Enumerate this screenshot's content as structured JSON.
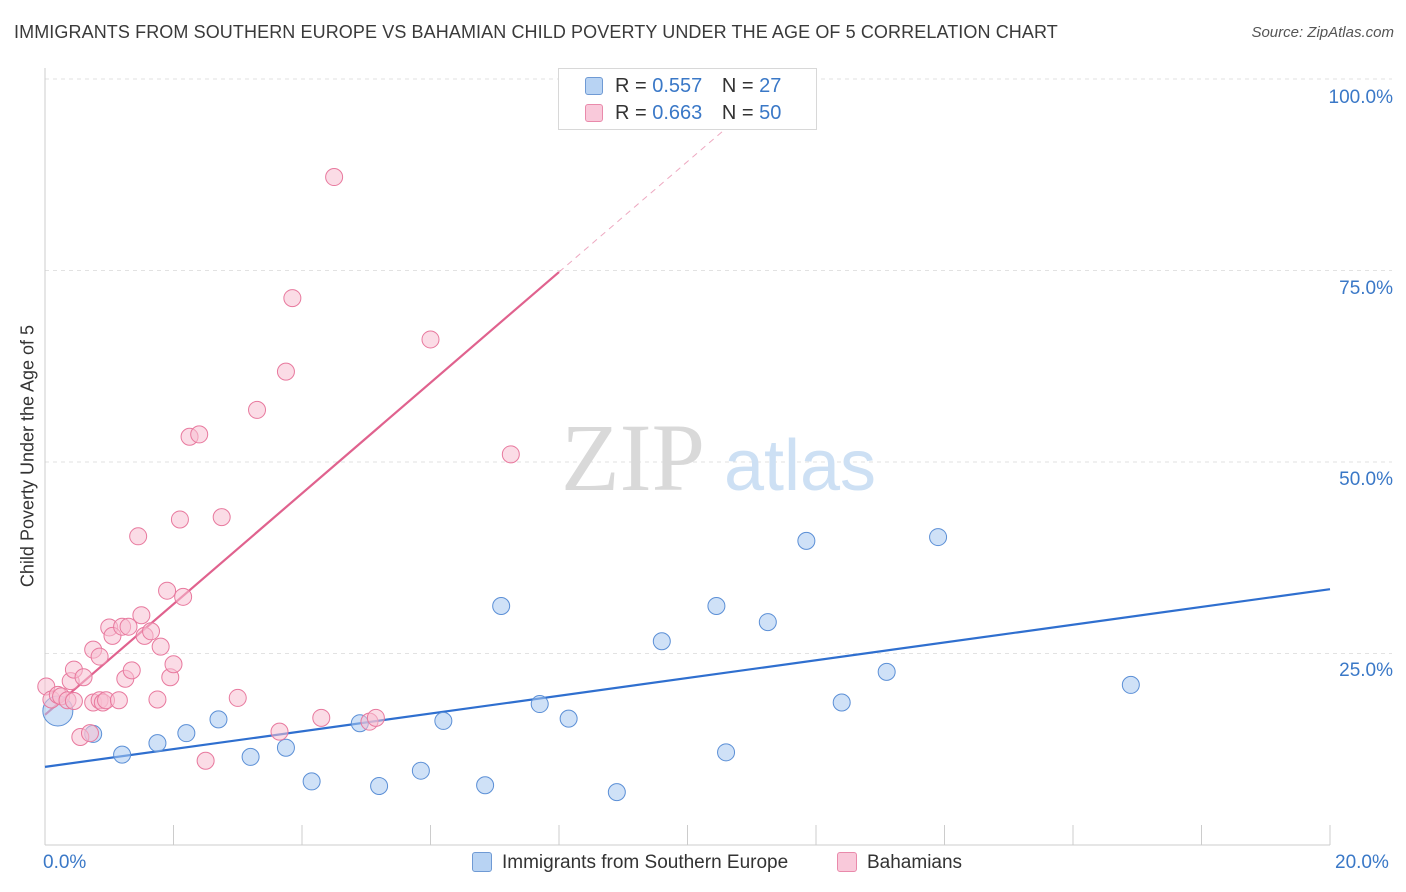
{
  "title": "IMMIGRANTS FROM SOUTHERN EUROPE VS BAHAMIAN CHILD POVERTY UNDER THE AGE OF 5 CORRELATION CHART",
  "source": "Source: ZipAtlas.com",
  "watermark": {
    "zip": "ZIP",
    "atlas": "atlas"
  },
  "legend": {
    "r_label": "R =",
    "n_label": "N =",
    "series": [
      {
        "r": "0.557",
        "n": "27"
      },
      {
        "r": "0.663",
        "n": "50"
      }
    ]
  },
  "chart_data": {
    "type": "scatter",
    "title": "IMMIGRANTS FROM SOUTHERN EUROPE VS BAHAMIAN CHILD POVERTY UNDER THE AGE OF 5 CORRELATION CHART",
    "ylabel": "Child Poverty Under the Age of 5",
    "xlabel": "",
    "xlim": [
      0,
      20
    ],
    "ylim": [
      0,
      100
    ],
    "x_tick_labels": [
      "0.0%",
      "20.0%"
    ],
    "y_tick_labels": [
      "100.0%",
      "75.0%",
      "50.0%",
      "25.0%"
    ],
    "y_tick_values": [
      100,
      75,
      50,
      25
    ],
    "grid": true,
    "legend_position": "top-center",
    "series": [
      {
        "name": "Immigrants from Southern Europe",
        "color": "#a8c8f0",
        "stroke": "#5b8fd6",
        "line_color": "#2f6fcf",
        "trend": {
          "x": [
            0,
            20
          ],
          "y": [
            10.2,
            33.4
          ]
        },
        "points": [
          {
            "x": 0.2,
            "y": 17.5,
            "big": true
          },
          {
            "x": 0.75,
            "y": 14.5
          },
          {
            "x": 1.2,
            "y": 11.8
          },
          {
            "x": 1.75,
            "y": 13.3
          },
          {
            "x": 2.2,
            "y": 14.6
          },
          {
            "x": 2.7,
            "y": 16.4
          },
          {
            "x": 3.2,
            "y": 11.5
          },
          {
            "x": 3.75,
            "y": 12.7
          },
          {
            "x": 4.15,
            "y": 8.3
          },
          {
            "x": 4.9,
            "y": 15.9
          },
          {
            "x": 5.2,
            "y": 7.7
          },
          {
            "x": 5.85,
            "y": 9.7
          },
          {
            "x": 6.2,
            "y": 16.2
          },
          {
            "x": 6.85,
            "y": 7.8
          },
          {
            "x": 7.1,
            "y": 31.2
          },
          {
            "x": 7.7,
            "y": 18.4
          },
          {
            "x": 8.15,
            "y": 16.5
          },
          {
            "x": 8.9,
            "y": 6.9
          },
          {
            "x": 9.6,
            "y": 26.6
          },
          {
            "x": 10.45,
            "y": 31.2
          },
          {
            "x": 10.6,
            "y": 12.1
          },
          {
            "x": 11.25,
            "y": 29.1
          },
          {
            "x": 11.85,
            "y": 39.7
          },
          {
            "x": 12.4,
            "y": 18.6
          },
          {
            "x": 13.1,
            "y": 22.6
          },
          {
            "x": 13.9,
            "y": 40.2
          },
          {
            "x": 16.9,
            "y": 20.9
          }
        ]
      },
      {
        "name": "Bahamians",
        "color": "#f7bfd2",
        "stroke": "#e8799e",
        "line_color": "#e0628e",
        "trend": {
          "x": [
            0,
            8.0
          ],
          "y": [
            17.0,
            74.8
          ]
        },
        "trend_extension": {
          "x": [
            8.0,
            10.8
          ],
          "y": [
            74.8,
            95.0
          ]
        },
        "points": [
          {
            "x": 0.02,
            "y": 20.7
          },
          {
            "x": 0.1,
            "y": 19.0
          },
          {
            "x": 0.2,
            "y": 19.6
          },
          {
            "x": 0.25,
            "y": 19.4
          },
          {
            "x": 0.35,
            "y": 18.9
          },
          {
            "x": 0.45,
            "y": 18.8
          },
          {
            "x": 0.4,
            "y": 21.4
          },
          {
            "x": 0.45,
            "y": 22.9
          },
          {
            "x": 0.55,
            "y": 14.1
          },
          {
            "x": 0.6,
            "y": 21.9
          },
          {
            "x": 0.7,
            "y": 14.6
          },
          {
            "x": 0.75,
            "y": 25.5
          },
          {
            "x": 0.75,
            "y": 18.6
          },
          {
            "x": 0.85,
            "y": 18.9
          },
          {
            "x": 0.85,
            "y": 24.6
          },
          {
            "x": 0.9,
            "y": 18.6
          },
          {
            "x": 0.95,
            "y": 18.9
          },
          {
            "x": 1.0,
            "y": 28.4
          },
          {
            "x": 1.05,
            "y": 27.3
          },
          {
            "x": 1.15,
            "y": 18.9
          },
          {
            "x": 1.2,
            "y": 28.5
          },
          {
            "x": 1.25,
            "y": 21.7
          },
          {
            "x": 1.3,
            "y": 28.5
          },
          {
            "x": 1.35,
            "y": 22.8
          },
          {
            "x": 1.45,
            "y": 40.3
          },
          {
            "x": 1.5,
            "y": 30.0
          },
          {
            "x": 1.55,
            "y": 27.3
          },
          {
            "x": 1.65,
            "y": 27.9
          },
          {
            "x": 1.75,
            "y": 19.0
          },
          {
            "x": 1.8,
            "y": 25.9
          },
          {
            "x": 1.9,
            "y": 33.2
          },
          {
            "x": 1.95,
            "y": 21.9
          },
          {
            "x": 2.0,
            "y": 23.6
          },
          {
            "x": 2.1,
            "y": 42.5
          },
          {
            "x": 2.15,
            "y": 32.4
          },
          {
            "x": 2.25,
            "y": 53.3
          },
          {
            "x": 2.4,
            "y": 53.6
          },
          {
            "x": 2.5,
            "y": 11.0
          },
          {
            "x": 2.75,
            "y": 42.8
          },
          {
            "x": 3.0,
            "y": 19.2
          },
          {
            "x": 3.3,
            "y": 56.8
          },
          {
            "x": 3.65,
            "y": 14.8
          },
          {
            "x": 3.75,
            "y": 61.8
          },
          {
            "x": 3.85,
            "y": 71.4
          },
          {
            "x": 4.3,
            "y": 16.6
          },
          {
            "x": 4.5,
            "y": 87.2
          },
          {
            "x": 5.05,
            "y": 16.1
          },
          {
            "x": 5.15,
            "y": 16.6
          },
          {
            "x": 6.0,
            "y": 66.0
          },
          {
            "x": 7.25,
            "y": 51.0
          }
        ]
      }
    ]
  }
}
